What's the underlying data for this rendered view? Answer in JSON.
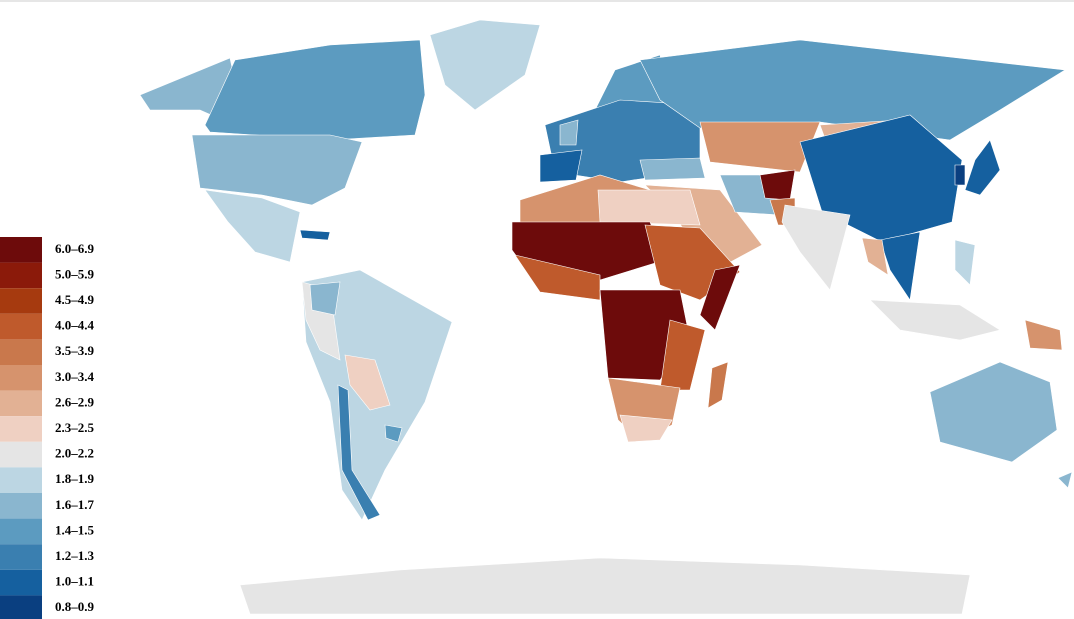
{
  "legend": {
    "items": [
      {
        "label": "6.0–6.9",
        "color": "#6d0b0b"
      },
      {
        "label": "5.0–5.9",
        "color": "#8b1a0a"
      },
      {
        "label": "4.5–4.9",
        "color": "#a63a0f"
      },
      {
        "label": "4.0–4.4",
        "color": "#bf5a2c"
      },
      {
        "label": "3.5–3.9",
        "color": "#c9784c"
      },
      {
        "label": "3.0–3.4",
        "color": "#d6936d"
      },
      {
        "label": "2.6–2.9",
        "color": "#e2b194"
      },
      {
        "label": "2.3–2.5",
        "color": "#efd0c2"
      },
      {
        "label": "2.0–2.2",
        "color": "#e5e5e5"
      },
      {
        "label": "1.8–1.9",
        "color": "#bcd6e3"
      },
      {
        "label": "1.6–1.7",
        "color": "#8ab6cf"
      },
      {
        "label": "1.4–1.5",
        "color": "#5c9bc0"
      },
      {
        "label": "1.2–1.3",
        "color": "#3a7fb0"
      },
      {
        "label": "1.0–1.1",
        "color": "#15609f"
      },
      {
        "label": "0.8–0.9",
        "color": "#0a3f80"
      }
    ]
  }
}
